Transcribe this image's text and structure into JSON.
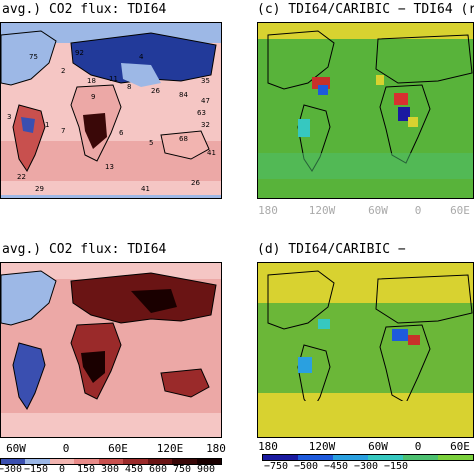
{
  "panels": {
    "a": {
      "title": "avg.) CO2 flux: TDI64"
    },
    "c": {
      "title": "(c) TDI64/CARIBIC − TDI64 (r"
    },
    "b": {
      "title": "avg.) CO2 flux: TDI64"
    },
    "d": {
      "title": "(d) TDI64/CARIBIC −"
    }
  },
  "axes": {
    "c_lon": [
      "180",
      "120W",
      "60W",
      "0",
      "60E"
    ],
    "b_lon": [
      "60W",
      "0",
      "60E",
      "120E",
      "180"
    ],
    "d_lon": [
      "180",
      "120W",
      "60W",
      "0",
      "60E"
    ]
  },
  "colorbar_left": {
    "labels": [
      "−300",
      "−150",
      "0",
      "150",
      "300",
      "450",
      "600",
      "750",
      "900"
    ],
    "colors": [
      "#3a4fb0",
      "#9ab6e6",
      "#f2b4b0",
      "#e88a88",
      "#c8504e",
      "#9a2a2a",
      "#6a1414",
      "#3a0808",
      "#1a0000"
    ]
  },
  "colorbar_right": {
    "labels": [
      "−750",
      "−500",
      "−450",
      "−300",
      "−150"
    ],
    "colors": [
      "#1a1aa0",
      "#1e5adc",
      "#2aa0e0",
      "#36c8c0",
      "#4cc070",
      "#7ad03c"
    ]
  },
  "region_numbers": [
    "75",
    "92",
    "2",
    "18",
    "11",
    "8",
    "26",
    "84",
    "63",
    "32",
    "3",
    "1",
    "7",
    "6",
    "5",
    "68",
    "29",
    "41",
    "26",
    "13",
    "22",
    "41",
    "9",
    "47",
    "4",
    "35"
  ],
  "colors": {
    "ocean_light": "#f5c6c4",
    "ocean_pink": "#eca8a6",
    "land_blue": "#9db8e6",
    "deep_blue": "#223a9a",
    "green_bg": "#58b33a",
    "yellow": "#d8d230"
  }
}
